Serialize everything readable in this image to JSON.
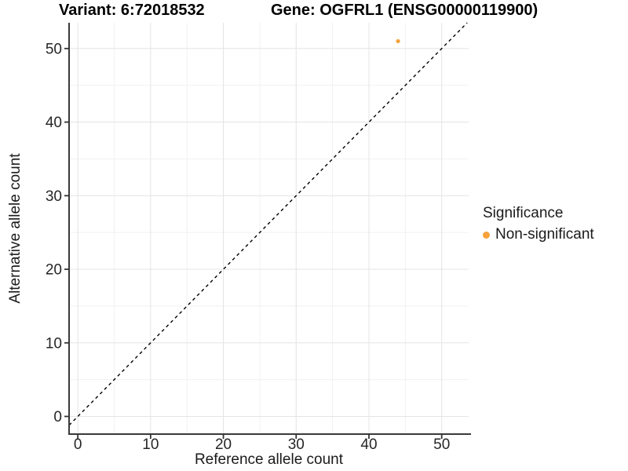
{
  "figure": {
    "titles": {
      "variant": "Variant: 6:72018532",
      "gene": "Gene: OGFRL1 (ENSG00000119900)"
    }
  },
  "legend": {
    "title": "Significance",
    "items": [
      {
        "label": "Non-significant",
        "color": "#F7A13C"
      }
    ]
  },
  "chart_data": {
    "type": "scatter",
    "title": "Variant: 6:72018532 | Gene: OGFRL1 (ENSG00000119900)",
    "xlabel": "Reference allele count",
    "ylabel": "Alternative allele count",
    "x_ticks": [
      0,
      10,
      20,
      30,
      40,
      50
    ],
    "y_ticks": [
      0,
      10,
      20,
      30,
      40,
      50
    ],
    "xlim": [
      -1.2,
      53.7
    ],
    "ylim": [
      -2.4,
      53.5
    ],
    "grid": {
      "major": [
        0,
        10,
        20,
        30,
        40,
        50
      ],
      "minor": [
        5,
        15,
        25,
        35,
        45
      ]
    },
    "series": [
      {
        "name": "Non-significant",
        "color": "#F7A13C",
        "points": [
          [
            44,
            51
          ]
        ]
      }
    ],
    "reference_line": {
      "kind": "identity",
      "equation": "y = x",
      "style": "dashed",
      "color": "#000000"
    },
    "legend_position": "right",
    "grid_on": true
  },
  "colors": {
    "axis_line": "#3a3a3a",
    "tick_mark": "#333333",
    "tick_label": "#262626",
    "grid_major": "#e4e4e4",
    "grid_minor": "#f1f1f1",
    "background": "#ffffff"
  }
}
